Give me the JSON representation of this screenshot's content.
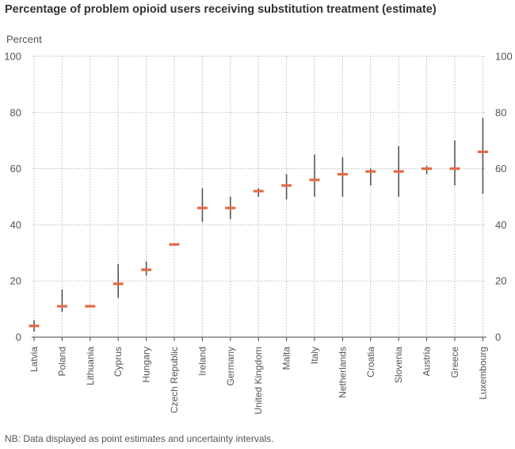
{
  "chart_data": {
    "type": "scatter",
    "title": "Percentage of problem opioid users receiving substitution treatment (estimate)",
    "ylabel": "Percent",
    "xlabel": "",
    "ylim": [
      0,
      100
    ],
    "yticks": [
      0,
      20,
      40,
      60,
      80,
      100
    ],
    "grid": true,
    "colors": {
      "point": "#e06b45",
      "interval": "#555555",
      "grid": "#bbbbbb",
      "axis": "#444444"
    },
    "categories": [
      "Latvia",
      "Poland",
      "Lithuania",
      "Cyprus",
      "Hungary",
      "Czech Republic",
      "Ireland",
      "Germany",
      "United Kingdom",
      "Malta",
      "Italy",
      "Netherlands",
      "Croatia",
      "Slovenia",
      "Austria",
      "Greece",
      "Luxembourg"
    ],
    "series": [
      {
        "name": "Point estimate",
        "values": [
          4,
          11,
          11,
          19,
          24,
          33,
          46,
          46,
          52,
          54,
          56,
          58,
          59,
          59,
          60,
          60,
          66
        ]
      },
      {
        "name": "Uncertainty low",
        "values": [
          2,
          9,
          11,
          14,
          22,
          33,
          41,
          42,
          50,
          49,
          50,
          50,
          54,
          50,
          58,
          54,
          51
        ]
      },
      {
        "name": "Uncertainty high",
        "values": [
          6,
          17,
          11,
          26,
          27,
          33,
          53,
          50,
          53,
          58,
          65,
          64,
          60,
          68,
          61,
          70,
          78
        ]
      }
    ],
    "footnote": "NB: Data displayed as point estimates and uncertainty intervals."
  }
}
